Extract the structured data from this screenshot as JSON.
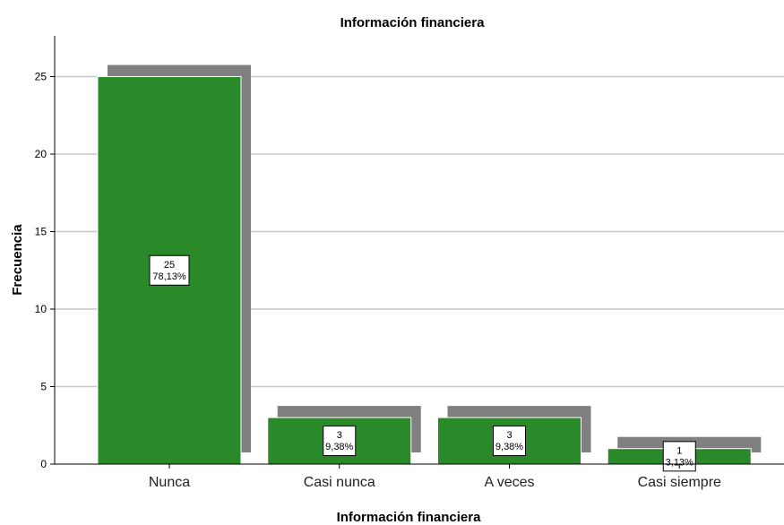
{
  "chart_data": {
    "type": "bar",
    "title": "Información financiera",
    "xlabel": "Información financiera",
    "ylabel": "Frecuencia",
    "categories": [
      "Nunca",
      "Casi nunca",
      "A veces",
      "Casi siempre"
    ],
    "values": [
      25,
      3,
      3,
      1
    ],
    "percent_labels": [
      "78,13%",
      "9,38%",
      "9,38%",
      "3,13%"
    ],
    "ylim": [
      0,
      27.5
    ],
    "yticks": [
      0,
      5,
      10,
      15,
      20,
      25
    ],
    "grid": true,
    "bar_color": "#2a8a2a",
    "shadow_color": "#808080",
    "grid_color": "#c8c8c8"
  }
}
